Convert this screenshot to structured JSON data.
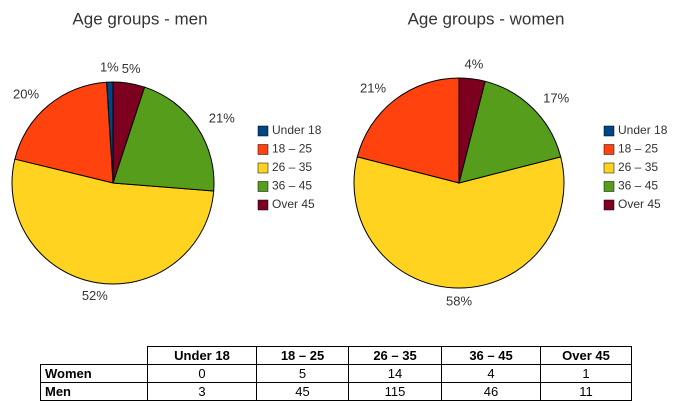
{
  "chart_data": [
    {
      "type": "pie",
      "title": "Age groups - men",
      "categories": [
        "Under 18",
        "18 – 25",
        "26 – 35",
        "36 – 45",
        "Over 45"
      ],
      "colors": [
        "#004586",
        "#ff420e",
        "#ffd320",
        "#579d1c",
        "#7e0021"
      ],
      "values": [
        1,
        20,
        52,
        21,
        5
      ],
      "value_labels": [
        "1%",
        "20%",
        "52%",
        "21%",
        "5%"
      ]
    },
    {
      "type": "pie",
      "title": "Age groups - women",
      "categories": [
        "Under 18",
        "18 – 25",
        "26 – 35",
        "36 – 45",
        "Over 45"
      ],
      "colors": [
        "#004586",
        "#ff420e",
        "#ffd320",
        "#579d1c",
        "#7e0021"
      ],
      "values": [
        0,
        21,
        58,
        17,
        4
      ],
      "value_labels": [
        null,
        "21%",
        "58%",
        "17%",
        "4%"
      ]
    }
  ],
  "table": {
    "columns": [
      "Under 18",
      "18 – 25",
      "26 – 35",
      "36 – 45",
      "Over 45"
    ],
    "rows": [
      [
        "Women",
        "0",
        "5",
        "14",
        "4",
        "1"
      ],
      [
        "Men",
        "3",
        "45",
        "115",
        "46",
        "11"
      ]
    ]
  }
}
